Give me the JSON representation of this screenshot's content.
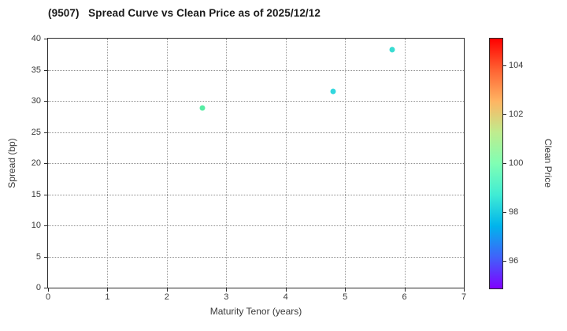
{
  "title": "(9507)   Spread Curve vs Clean Price as of 2025/12/12",
  "chart_data": {
    "type": "scatter",
    "title": "(9507)   Spread Curve vs Clean Price as of 2025/12/12",
    "xlabel": "Maturity Tenor (years)",
    "ylabel": "Spread (bp)",
    "xlim": [
      0,
      7
    ],
    "ylim": [
      0,
      40
    ],
    "x_ticks": [
      0,
      1,
      2,
      3,
      4,
      5,
      6,
      7
    ],
    "y_ticks": [
      0,
      5,
      10,
      15,
      20,
      25,
      30,
      35,
      40
    ],
    "grid": "dotted",
    "legend": "none",
    "points": [
      {
        "x": 2.6,
        "y": 28.8,
        "clean_price_approx": 100.2,
        "color": "#57eda4"
      },
      {
        "x": 4.8,
        "y": 31.5,
        "clean_price_approx": 98.4,
        "color": "#32d7de"
      },
      {
        "x": 5.8,
        "y": 38.2,
        "clean_price_approx": 98.6,
        "color": "#3adcd2"
      }
    ],
    "colorbar": {
      "label": "Clean Price",
      "min": 94.9,
      "max": 105.1,
      "ticks": [
        96,
        98,
        100,
        102,
        104
      ],
      "colormap": "rainbow",
      "gradient_stops": [
        "#8000ff",
        "#4062fa",
        "#00b4ec",
        "#40ecd4",
        "#80ffb4",
        "#bfec8e",
        "#ffb462",
        "#ff6232",
        "#ff0000"
      ]
    }
  }
}
